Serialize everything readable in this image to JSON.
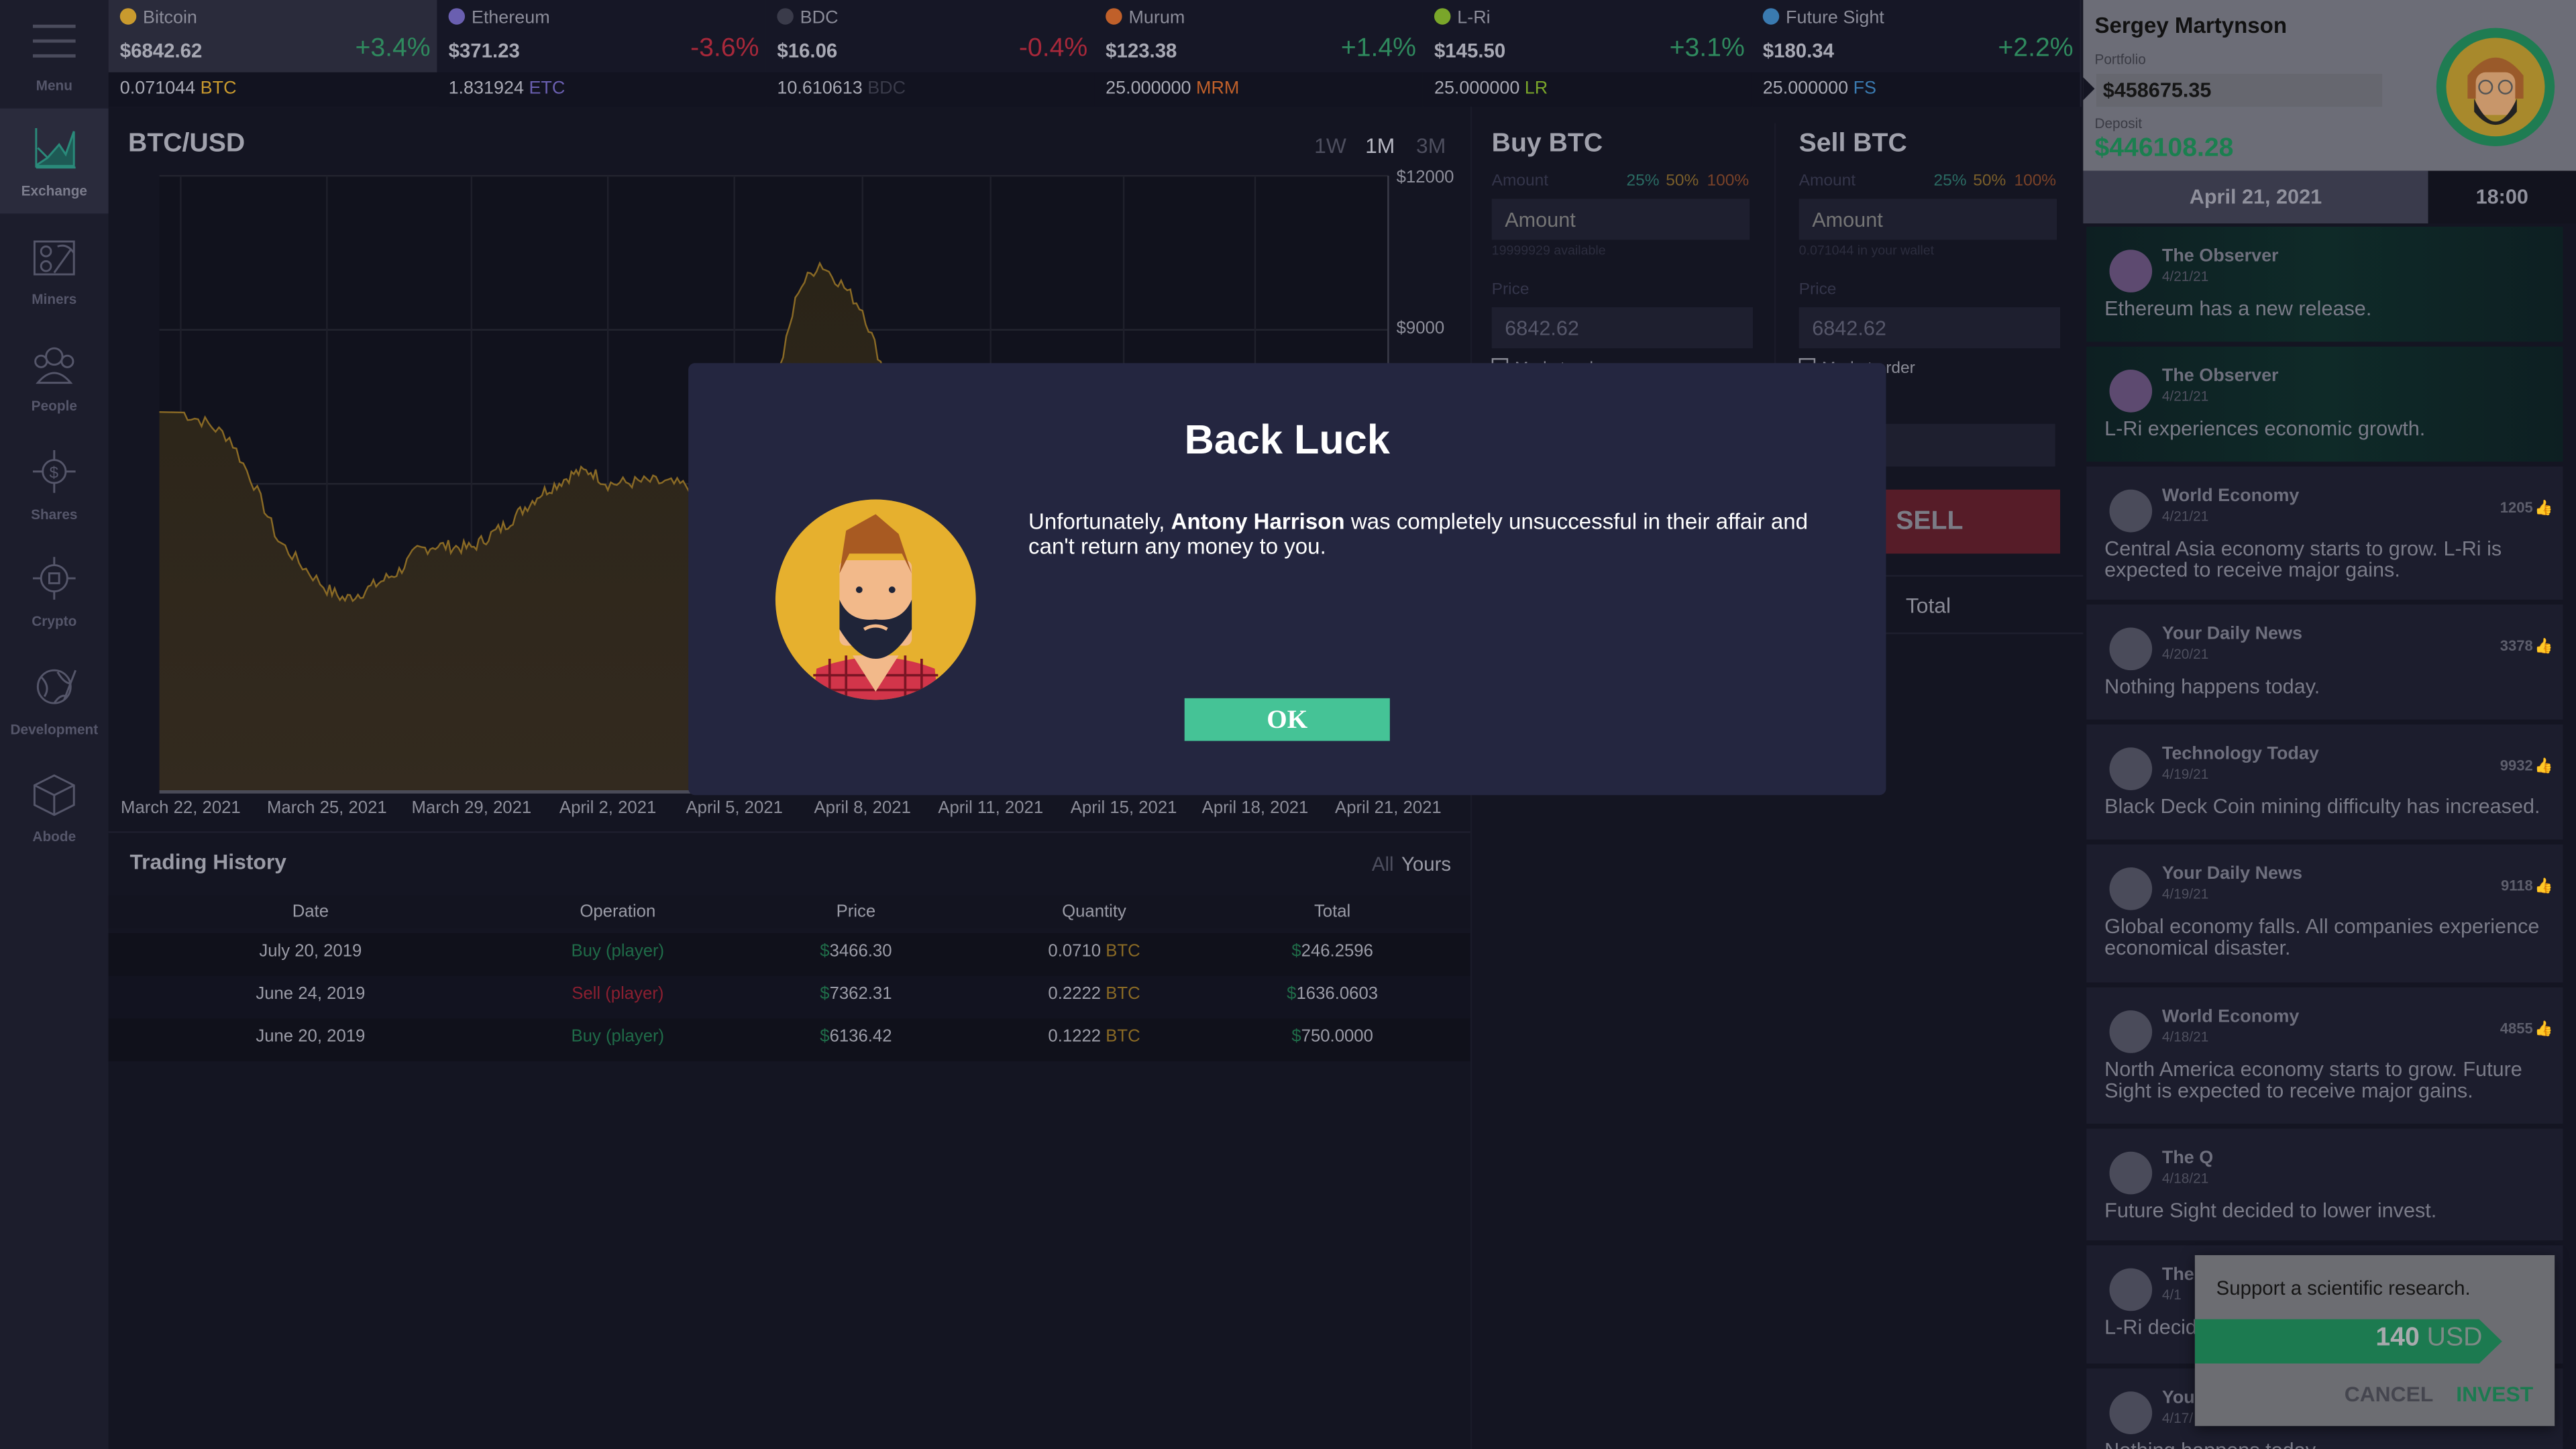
{
  "nav": {
    "menu_label": "Menu",
    "items": [
      {
        "label": "Exchange",
        "icon": "exchange-chart-icon",
        "active": true
      },
      {
        "label": "Miners",
        "icon": "miners-pickaxe-icon"
      },
      {
        "label": "People",
        "icon": "people-group-icon"
      },
      {
        "label": "Shares",
        "icon": "shares-dollar-icon"
      },
      {
        "label": "Crypto",
        "icon": "crypto-network-icon"
      },
      {
        "label": "Development",
        "icon": "development-globe-icon"
      },
      {
        "label": "Abode",
        "icon": "abode-cube-icon"
      }
    ]
  },
  "tickers": [
    {
      "name": "Bitcoin",
      "price": "$6842.62",
      "change": "+3.4%",
      "dir": "pos",
      "amount": "0.071044",
      "symbol": "BTC",
      "color": "#c99a2e",
      "active": true
    },
    {
      "name": "Ethereum",
      "price": "$371.23",
      "change": "-3.6%",
      "dir": "neg",
      "amount": "1.831924",
      "symbol": "ETC",
      "color": "#6a5fb0"
    },
    {
      "name": "BDC",
      "price": "$16.06",
      "change": "-0.4%",
      "dir": "neg",
      "amount": "10.610613",
      "symbol": "BDC",
      "color": "#3a3b4a"
    },
    {
      "name": "Murum",
      "price": "$123.38",
      "change": "+1.4%",
      "dir": "pos",
      "amount": "25.000000",
      "symbol": "MRM",
      "color": "#c0602a"
    },
    {
      "name": "L-Ri",
      "price": "$145.50",
      "change": "+3.1%",
      "dir": "pos",
      "amount": "25.000000",
      "symbol": "LR",
      "color": "#7aa62a"
    },
    {
      "name": "Future Sight",
      "price": "$180.34",
      "change": "+2.2%",
      "dir": "pos",
      "amount": "25.000000",
      "symbol": "FS",
      "color": "#3a7ab0"
    }
  ],
  "chart": {
    "title": "BTC/USD",
    "ranges": [
      "1W",
      "1M",
      "3M"
    ],
    "active_range": "1M"
  },
  "chart_data": {
    "type": "area",
    "line_color": "#8a6a25",
    "y_ticks": [
      "$12000",
      "$9000"
    ],
    "ylim": [
      0,
      12000
    ],
    "grid": true,
    "x_tick_labels": [
      "March 22, 2021",
      "March 25, 2021",
      "March 29, 2021",
      "April 2, 2021",
      "April 5, 2021",
      "April 8, 2021",
      "April 11, 2021",
      "April 15, 2021",
      "April 18, 2021",
      "April 21, 2021"
    ],
    "x_tick_days": [
      0,
      3,
      7,
      11,
      14,
      17,
      20,
      24,
      27,
      30
    ],
    "points": [
      [
        0,
        7400
      ],
      [
        0.5,
        7200
      ],
      [
        1,
        6900
      ],
      [
        1.5,
        6000
      ],
      [
        2,
        4900
      ],
      [
        2.5,
        4400
      ],
      [
        3,
        3950
      ],
      [
        3.5,
        3750
      ],
      [
        4,
        3900
      ],
      [
        4.5,
        4100
      ],
      [
        5,
        4300
      ],
      [
        5.5,
        4700
      ],
      [
        6,
        4800
      ],
      [
        7,
        4750
      ],
      [
        8,
        5200
      ],
      [
        9,
        5800
      ],
      [
        10,
        6200
      ],
      [
        10.5,
        6250
      ],
      [
        11,
        6000
      ],
      [
        12,
        6050
      ],
      [
        13,
        5950
      ],
      [
        14,
        5800
      ],
      [
        14.5,
        6300
      ],
      [
        15,
        8000
      ],
      [
        15.5,
        9800
      ],
      [
        16,
        10300
      ],
      [
        16.5,
        9900
      ],
      [
        17,
        9400
      ],
      [
        17.5,
        8200
      ],
      [
        18,
        7200
      ],
      [
        30,
        6842.62
      ]
    ]
  },
  "history": {
    "title": "Trading History",
    "filters": [
      "All",
      "Yours"
    ],
    "active_filter": "Yours",
    "columns": [
      "Date",
      "Operation",
      "Price",
      "Quantity",
      "Total"
    ],
    "rows": [
      {
        "date": "July 20, 2019",
        "op": "Buy (player)",
        "type": "buy",
        "price": "3466.30",
        "qty": "0.0710",
        "sym": "BTC",
        "total": "246.2596"
      },
      {
        "date": "June 24, 2019",
        "op": "Sell (player)",
        "type": "sell",
        "price": "7362.31",
        "qty": "0.2222",
        "sym": "BTC",
        "total": "1636.0603"
      },
      {
        "date": "June 20, 2019",
        "op": "Buy (player)",
        "type": "buy",
        "price": "6136.42",
        "qty": "0.1222",
        "sym": "BTC",
        "total": "750.0000"
      }
    ]
  },
  "buy": {
    "title": "Buy BTC",
    "amount_label": "Amount",
    "pcts": [
      "25%",
      "50%",
      "100%"
    ],
    "amount_placeholder": "Amount",
    "available": "19999929 available",
    "price_label": "Price",
    "price_value": "6842.62",
    "market_order": "Market order"
  },
  "sell": {
    "title": "Sell BTC",
    "amount_label": "Amount",
    "pcts": [
      "25%",
      "50%",
      "100%"
    ],
    "amount_placeholder": "Amount",
    "available": "0.071044 in your wallet",
    "price_label": "Price",
    "price_value": "6842.62",
    "market_order": "Market order",
    "sell_label": "SELL",
    "total_label": "Total"
  },
  "profile": {
    "name": "Sergey Martynson",
    "portfolio_label": "Portfolio",
    "portfolio": "$458675.35",
    "deposit_label": "Deposit",
    "deposit": "$446108.28",
    "date": "April 21, 2021",
    "time": "18:00"
  },
  "news": [
    {
      "source": "The Observer",
      "date": "4/21/21",
      "text": "Ethereum has a new release.",
      "hl": true
    },
    {
      "source": "The Observer",
      "date": "4/21/21",
      "text": "L-Ri experiences economic growth.",
      "hl": true
    },
    {
      "source": "World Economy",
      "date": "4/21/21",
      "text": "Central Asia economy starts to grow. L-Ri is expected to receive major gains.",
      "likes": "1205"
    },
    {
      "source": "Your Daily News",
      "date": "4/20/21",
      "text": "Nothing happens today.",
      "likes": "3378"
    },
    {
      "source": "Technology Today",
      "date": "4/19/21",
      "text": "Black Deck Coin mining difficulty has increased.",
      "likes": "9932"
    },
    {
      "source": "Your Daily News",
      "date": "4/19/21",
      "text": "Global economy falls. All companies experience economical disaster.",
      "likes": "9118"
    },
    {
      "source": "World Economy",
      "date": "4/18/21",
      "text": "North America economy starts to grow. Future Sight is expected to receive major gains.",
      "likes": "4855"
    },
    {
      "source": "The Q",
      "date": "4/18/21",
      "text": "Future Sight decided to lower invest."
    },
    {
      "source": "The",
      "date": "4/1",
      "text": "L-Ri decid"
    },
    {
      "source": "Your",
      "date": "4/17/",
      "text": "Nothing happens today."
    }
  ],
  "invest": {
    "text": "Support a scientific research.",
    "amount": "140",
    "currency": "USD",
    "cancel": "CANCEL",
    "invest": "INVEST"
  },
  "modal": {
    "title": "Back Luck",
    "text_before": "Unfortunately, ",
    "person": "Antony Harrison",
    "text_after": " was completely unsuccessful in their affair and can't return any money to you.",
    "ok": "OK"
  }
}
